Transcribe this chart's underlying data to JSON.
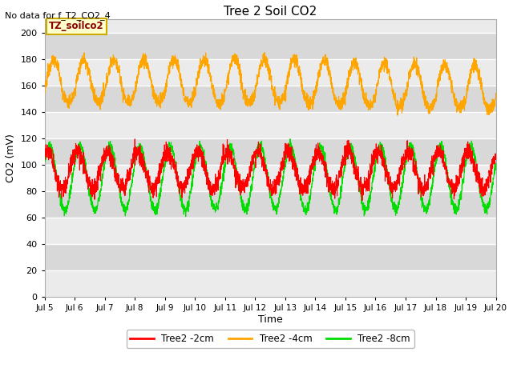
{
  "title": "Tree 2 Soil CO2",
  "no_data_text": "No data for f_T2_CO2_4",
  "ylabel": "CO2 (mV)",
  "xlabel": "Time",
  "tz_label": "TZ_soilco2",
  "ylim": [
    0,
    210
  ],
  "yticks": [
    0,
    20,
    40,
    60,
    80,
    100,
    120,
    140,
    160,
    180,
    200
  ],
  "xstart": 5,
  "xend": 20,
  "xtick_labels": [
    "Jul 5",
    "Jul 6",
    "Jul 7",
    "Jul 8",
    "Jul 9",
    "Jul 10",
    "Jul 11",
    "Jul 12",
    "Jul 13",
    "Jul 14",
    "Jul 15",
    "Jul 16",
    "Jul 17",
    "Jul 18",
    "Jul 19",
    "Jul 20"
  ],
  "color_2cm": "#ff0000",
  "color_4cm": "#ffa500",
  "color_8cm": "#00dd00",
  "bg_color": "#ffffff",
  "plot_bg_color_light": "#ebebeb",
  "plot_bg_color_dark": "#d8d8d8",
  "legend_entries": [
    "Tree2 -2cm",
    "Tree2 -4cm",
    "Tree2 -8cm"
  ],
  "tz_box_color": "#ffffcc",
  "tz_text_color": "#880000",
  "tz_box_edge": "#ccaa00"
}
